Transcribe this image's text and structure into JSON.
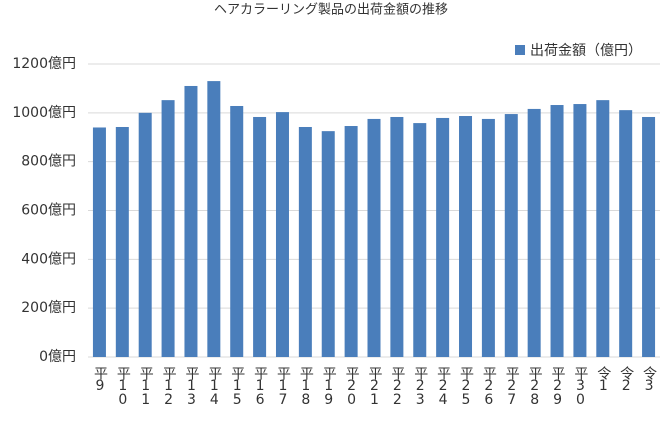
{
  "chart_data": {
    "type": "bar",
    "title": "ヘアカラーリング製品の出荷金額の推移",
    "categories": [
      "平9",
      "平10",
      "平11",
      "平12",
      "平13",
      "平14",
      "平15",
      "平16",
      "平17",
      "平18",
      "平19",
      "平20",
      "平21",
      "平22",
      "平23",
      "平24",
      "平25",
      "平26",
      "平27",
      "平28",
      "平29",
      "平30",
      "令1",
      "令2",
      "令3"
    ],
    "series": [
      {
        "name": "出荷金額（億円）",
        "color": "#4a7ebb",
        "values": [
          940,
          942,
          1000,
          1052,
          1110,
          1130,
          1028,
          983,
          1003,
          942,
          925,
          946,
          975,
          983,
          958,
          979,
          987,
          975,
          995,
          1016,
          1032,
          1036,
          1052,
          1011,
          983
        ]
      }
    ],
    "ylim": [
      0,
      1200
    ],
    "yticks": [
      {
        "value": 0,
        "label": "0億円"
      },
      {
        "value": 200,
        "label": "200億円"
      },
      {
        "value": 400,
        "label": "400億円"
      },
      {
        "value": 600,
        "label": "600億円"
      },
      {
        "value": 800,
        "label": "800億円"
      },
      {
        "value": 1000,
        "label": "1000億円"
      },
      {
        "value": 1200,
        "label": "1200億円"
      }
    ],
    "grid": true,
    "legend": "top-right"
  }
}
